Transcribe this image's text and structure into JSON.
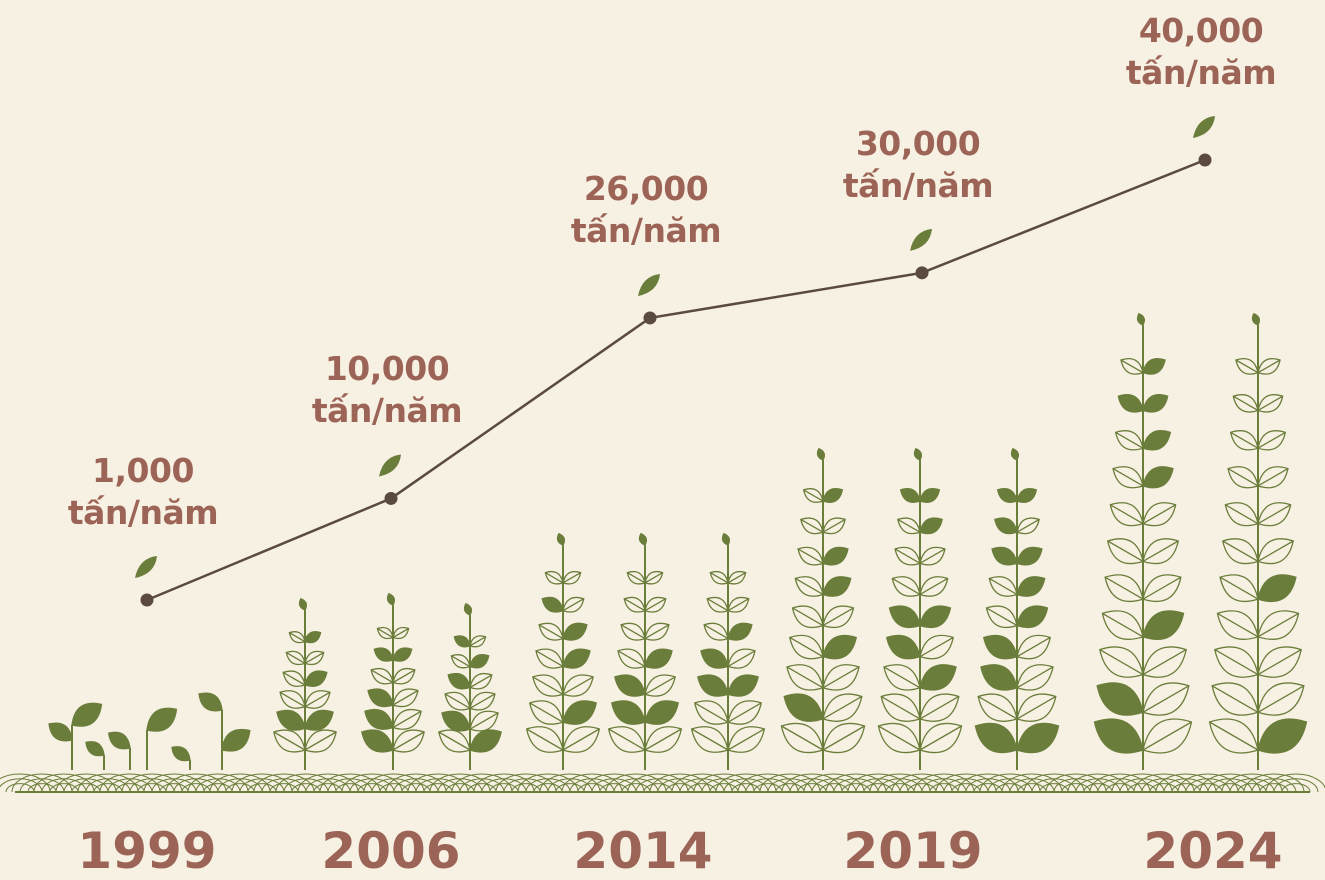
{
  "chart_data": {
    "type": "line",
    "categories": [
      "1999",
      "2006",
      "2014",
      "2019",
      "2024"
    ],
    "values": [
      1000,
      10000,
      26000,
      30000,
      40000
    ],
    "value_labels": [
      "1,000\ntấn/năm",
      "10,000\ntấn/năm",
      "26,000\ntấn/năm",
      "30,000\ntấn/năm",
      "40,000\ntấn/năm"
    ],
    "color": "#5a4a40",
    "label_color": "#9c6457",
    "plant_color": "#6b7d3a"
  }
}
